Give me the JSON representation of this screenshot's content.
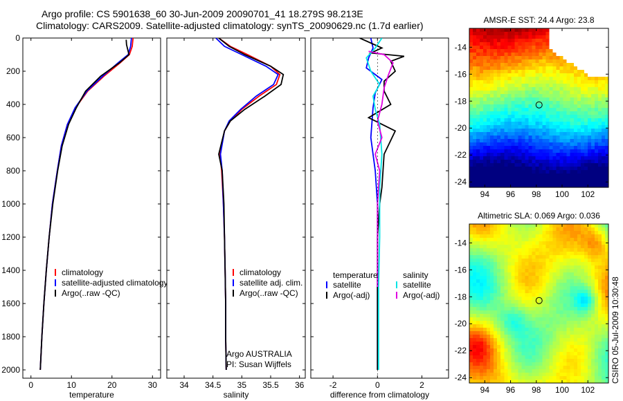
{
  "header": {
    "title1": "Argo profile: CS 5901638_60 30-Jun-2009 20090701_41 18.279S 98.213E",
    "title2": "Climatology: CARS2009. Satellite-adjusted climatology: synTS_20090629.nc (1.7d earlier)"
  },
  "side_label": "CSIRO 05-Jul-2009 10:30:48",
  "chart_data": [
    {
      "type": "line",
      "panel": "temperature",
      "xlabel": "temperature",
      "ylabel": "",
      "xlim": [
        -2,
        32
      ],
      "ylim": [
        0,
        2050
      ],
      "y_reversed": true,
      "xticks": [
        0,
        10,
        20,
        30
      ],
      "yticks": [
        0,
        200,
        400,
        600,
        800,
        1000,
        1200,
        1400,
        1600,
        1800,
        2000
      ],
      "legend": [
        "climatology",
        "satellite-adjusted climatology",
        "Argo(..raw -QC)"
      ],
      "legend_position": "lower-right",
      "series": [
        {
          "name": "climatology",
          "color": "#ff0000",
          "x": [
            25.2,
            25.0,
            24.3,
            22.0,
            18.0,
            14.0,
            11.0,
            9.0,
            7.5,
            6.5,
            5.3,
            4.5,
            3.8,
            3.2,
            2.7,
            2.3
          ],
          "y": [
            0,
            50,
            100,
            150,
            230,
            320,
            420,
            520,
            650,
            800,
            1000,
            1200,
            1400,
            1600,
            1800,
            2000
          ]
        },
        {
          "name": "satellite-adjusted climatology",
          "color": "#0000ff",
          "x": [
            24.8,
            24.6,
            24.0,
            21.5,
            17.7,
            13.8,
            10.9,
            9.0,
            7.5,
            6.5,
            5.3,
            4.5,
            3.8,
            3.2,
            2.7,
            2.3
          ],
          "y": [
            0,
            50,
            100,
            150,
            230,
            320,
            420,
            520,
            650,
            800,
            1000,
            1200,
            1400,
            1600,
            1800,
            2000
          ]
        },
        {
          "name": "Argo(..raw -QC)",
          "color": "#000000",
          "x": [
            23.5,
            23.6,
            24.2,
            21.8,
            17.2,
            13.5,
            11.2,
            9.3,
            7.7,
            6.6,
            5.4,
            4.5,
            3.8,
            3.2,
            2.7,
            2.3
          ],
          "y": [
            10,
            40,
            100,
            150,
            230,
            320,
            420,
            520,
            650,
            800,
            1000,
            1200,
            1400,
            1600,
            1800,
            2000
          ]
        }
      ]
    },
    {
      "type": "line",
      "panel": "salinity",
      "xlabel": "salinity",
      "ylabel": "",
      "xlim": [
        33.7,
        36.1
      ],
      "ylim": [
        0,
        2050
      ],
      "y_reversed": true,
      "xticks": [
        34,
        34.5,
        35,
        35.5,
        36
      ],
      "legend": [
        "climatology",
        "satellite adj. clim.",
        "Argo(..raw -QC)"
      ],
      "legend_position": "lower-right",
      "annotations": [
        "Argo AUSTRALIA",
        "PI: Susan Wijffels"
      ],
      "series": [
        {
          "name": "climatology",
          "color": "#ff0000",
          "x": [
            34.6,
            34.8,
            35.1,
            35.5,
            35.66,
            35.6,
            35.3,
            35.0,
            34.8,
            34.7,
            34.62,
            34.65,
            34.68,
            34.7,
            34.71,
            34.72,
            34.72,
            34.73
          ],
          "y": [
            0,
            50,
            100,
            170,
            220,
            280,
            350,
            430,
            500,
            560,
            700,
            800,
            1000,
            1200,
            1400,
            1600,
            1800,
            2000
          ]
        },
        {
          "name": "satellite adj. clim.",
          "color": "#0000ff",
          "x": [
            34.55,
            34.7,
            35.0,
            35.42,
            35.63,
            35.55,
            35.25,
            34.98,
            34.78,
            34.7,
            34.63,
            34.66,
            34.68,
            34.7,
            34.71,
            34.72,
            34.72,
            34.73
          ],
          "y": [
            0,
            50,
            100,
            170,
            220,
            280,
            350,
            430,
            500,
            560,
            700,
            800,
            1000,
            1200,
            1400,
            1600,
            1800,
            2000
          ]
        },
        {
          "name": "Argo(..raw -QC)",
          "color": "#000000",
          "x": [
            34.6,
            34.78,
            35.05,
            35.5,
            35.72,
            35.68,
            35.4,
            35.05,
            34.8,
            34.7,
            34.6,
            34.66,
            34.69,
            34.7,
            34.71,
            34.72,
            34.72,
            34.73
          ],
          "y": [
            0,
            50,
            100,
            170,
            220,
            280,
            350,
            430,
            500,
            560,
            700,
            800,
            1000,
            1200,
            1400,
            1600,
            1800,
            2000
          ]
        }
      ]
    },
    {
      "type": "line",
      "panel": "difference",
      "xlabel": "difference from climatology",
      "ylabel": "",
      "xlim": [
        -3,
        3.2
      ],
      "ylim": [
        0,
        2050
      ],
      "y_reversed": true,
      "xticks": [
        -2,
        0,
        2
      ],
      "legend": [
        "temperature",
        "satellite",
        "Argo(-adj)",
        "salinity",
        "satellite",
        "Argo(-adj)"
      ],
      "legend_position": "lower-center",
      "series": [
        {
          "name": "satellite",
          "group": "temperature",
          "color": "#0000ff",
          "x": [
            -0.3,
            -0.2,
            -0.4,
            -0.5,
            0.2,
            -0.1,
            -0.2,
            -0.3,
            -0.1,
            0.0,
            0.0,
            0.0,
            0.0,
            0.0
          ],
          "y": [
            0,
            60,
            120,
            180,
            250,
            330,
            420,
            600,
            800,
            1000,
            1200,
            1400,
            1700,
            2000
          ]
        },
        {
          "name": "Argo(-adj)",
          "group": "temperature",
          "color": "#000000",
          "x": [
            -0.8,
            0.2,
            -0.3,
            1.2,
            0.6,
            0.8,
            0.3,
            0.3,
            0.6,
            -0.4,
            0.8,
            0.3,
            0.2,
            0.1,
            0.0,
            0.0,
            0.0
          ],
          "y": [
            0,
            60,
            90,
            110,
            140,
            200,
            260,
            320,
            400,
            480,
            560,
            700,
            900,
            1000,
            1200,
            1500,
            2000
          ]
        },
        {
          "name": "satellite",
          "group": "salinity",
          "color": "#00e5e5",
          "x": [
            0.2,
            -0.1,
            -0.5,
            -0.3,
            0.1,
            -0.2,
            -0.1,
            0.1,
            0.2,
            0.1,
            0.1,
            0.05,
            0.05,
            0.05
          ],
          "y": [
            0,
            60,
            120,
            200,
            280,
            350,
            430,
            520,
            700,
            900,
            1200,
            1500,
            1800,
            2000
          ]
        },
        {
          "name": "Argo(-adj)",
          "group": "salinity",
          "color": "#e000e0",
          "x": [
            -0.4,
            0.3,
            0.7,
            0.5,
            0.3,
            0.2,
            0.0,
            0.2,
            -0.1,
            0.1,
            0.0,
            0.0,
            0.0
          ],
          "y": [
            80,
            100,
            150,
            220,
            300,
            400,
            500,
            600,
            700,
            800,
            1000,
            1300,
            1500
          ]
        }
      ]
    },
    {
      "type": "heatmap",
      "panel": "sst_map",
      "title": "AMSR-E SST: 24.4  Argo: 23.8",
      "xlim": [
        92.8,
        103.6
      ],
      "ylim": [
        -24.4,
        -12.6
      ],
      "xticks": [
        94,
        96,
        98,
        100,
        102
      ],
      "yticks": [
        -14,
        -16,
        -18,
        -20,
        -22,
        -24
      ],
      "marker": {
        "lon": 98.213,
        "lat": -18.279
      }
    },
    {
      "type": "heatmap",
      "panel": "sla_map",
      "title": "Altimetric SLA: 0.069  Argo: 0.036",
      "xlim": [
        92.8,
        103.6
      ],
      "ylim": [
        -24.4,
        -12.6
      ],
      "xticks": [
        94,
        96,
        98,
        100,
        102
      ],
      "yticks": [
        -14,
        -16,
        -18,
        -20,
        -22,
        -24
      ],
      "marker": {
        "lon": 98.213,
        "lat": -18.279
      }
    }
  ]
}
